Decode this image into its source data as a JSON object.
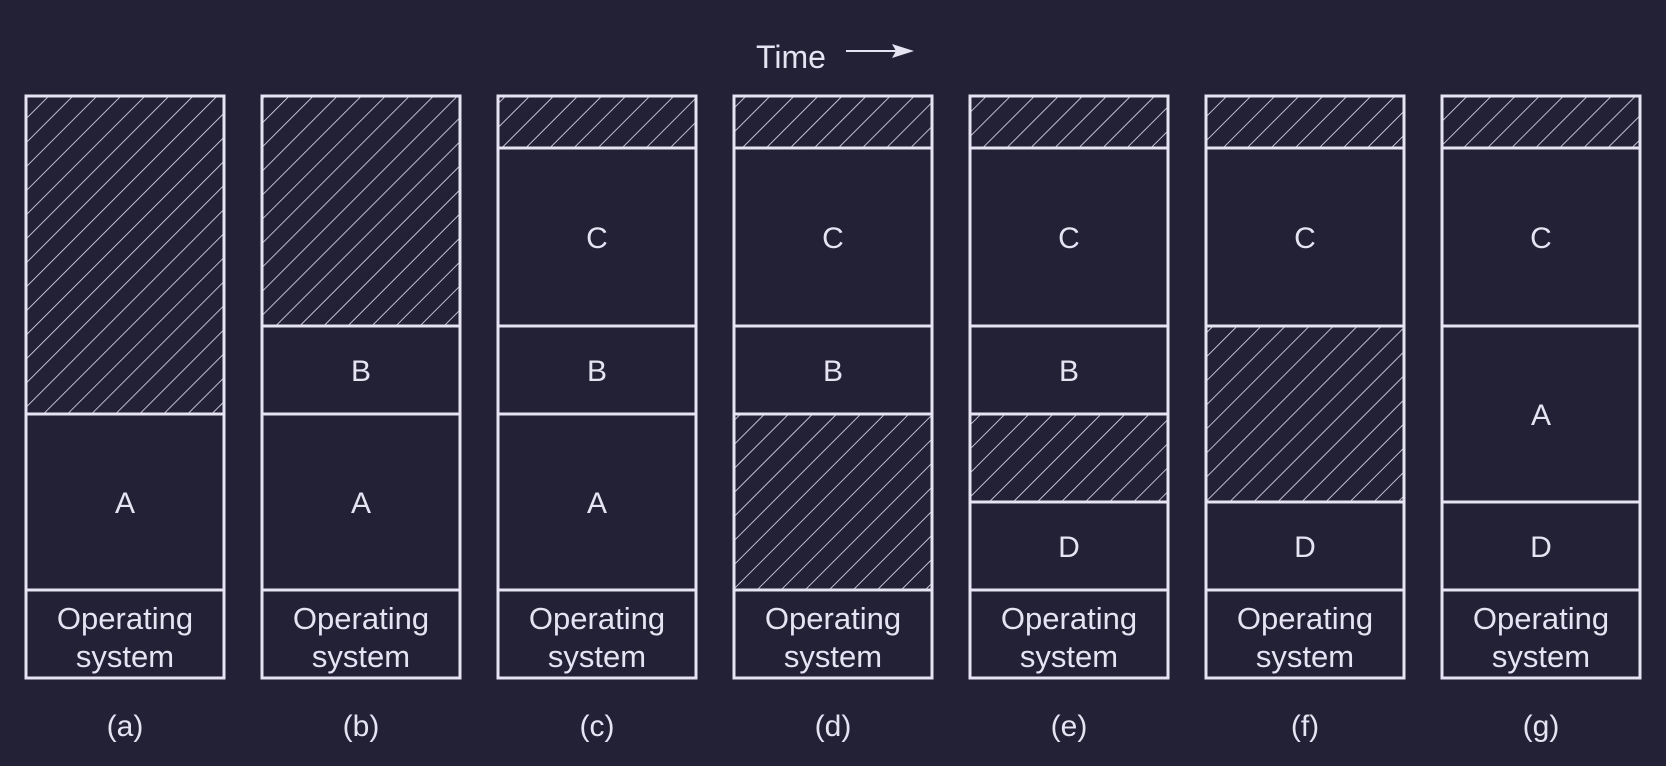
{
  "diagram": {
    "time_label": "Time",
    "colors": {
      "background": "#232136",
      "stroke": "#e6e4f3",
      "text": "#e6e4f3"
    },
    "os_label_line1": "Operating",
    "os_label_line2": "system",
    "columns": [
      {
        "caption": "(a)",
        "segments": [
          {
            "type": "free",
            "label": ""
          },
          {
            "type": "process",
            "label": "A"
          }
        ]
      },
      {
        "caption": "(b)",
        "segments": [
          {
            "type": "free",
            "label": ""
          },
          {
            "type": "process",
            "label": "B"
          },
          {
            "type": "process",
            "label": "A"
          }
        ]
      },
      {
        "caption": "(c)",
        "segments": [
          {
            "type": "free",
            "label": ""
          },
          {
            "type": "process",
            "label": "C"
          },
          {
            "type": "process",
            "label": "B"
          },
          {
            "type": "process",
            "label": "A"
          }
        ]
      },
      {
        "caption": "(d)",
        "segments": [
          {
            "type": "free",
            "label": ""
          },
          {
            "type": "process",
            "label": "C"
          },
          {
            "type": "process",
            "label": "B"
          },
          {
            "type": "free",
            "label": ""
          }
        ]
      },
      {
        "caption": "(e)",
        "segments": [
          {
            "type": "free",
            "label": ""
          },
          {
            "type": "process",
            "label": "C"
          },
          {
            "type": "process",
            "label": "B"
          },
          {
            "type": "free",
            "label": ""
          },
          {
            "type": "process",
            "label": "D"
          }
        ]
      },
      {
        "caption": "(f)",
        "segments": [
          {
            "type": "free",
            "label": ""
          },
          {
            "type": "process",
            "label": "C"
          },
          {
            "type": "free",
            "label": ""
          },
          {
            "type": "process",
            "label": "D"
          }
        ]
      },
      {
        "caption": "(g)",
        "segments": [
          {
            "type": "free",
            "label": ""
          },
          {
            "type": "process",
            "label": "C"
          },
          {
            "type": "process",
            "label": "A"
          },
          {
            "type": "process",
            "label": "D"
          }
        ]
      }
    ]
  }
}
